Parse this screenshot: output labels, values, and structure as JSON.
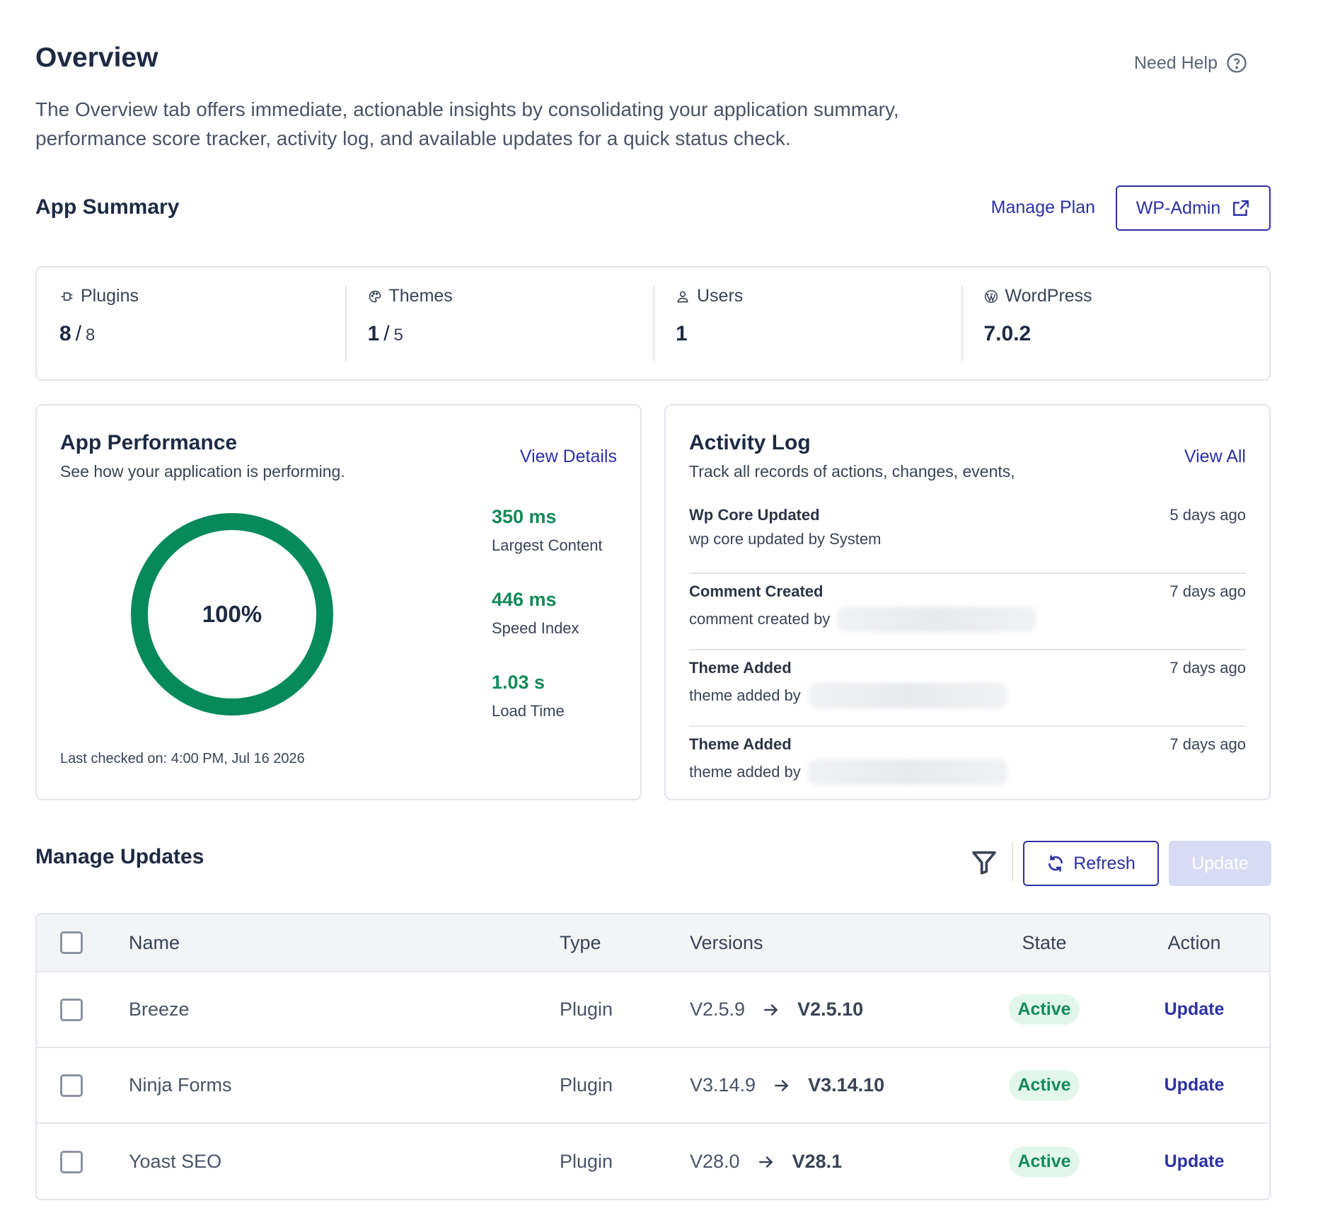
{
  "header": {
    "title": "Overview",
    "help_label": "Need Help",
    "intro_line1": "The Overview tab offers immediate, actionable insights by consolidating your application summary,",
    "intro_line2": "performance score tracker, activity log, and available updates for a quick status check."
  },
  "app_summary": {
    "title": "App Summary",
    "manage_plan": "Manage Plan",
    "wp_admin": "WP-Admin",
    "items": [
      {
        "label": "Plugins",
        "value": "8",
        "sep": "/",
        "total": "8",
        "icon": "plug-icon"
      },
      {
        "label": "Themes",
        "value": "1",
        "sep": "/",
        "total": "5",
        "icon": "palette-icon"
      },
      {
        "label": "Users",
        "value": "1",
        "icon": "user-icon"
      },
      {
        "label": "WordPress",
        "value": "7.0.2",
        "icon": "wordpress-icon"
      }
    ]
  },
  "performance": {
    "title": "App Performance",
    "subtitle": "See how your application is performing.",
    "link": "View Details",
    "score_label": "100%",
    "score_fraction": 1.0,
    "ring_color": "#078a5b",
    "metrics": [
      {
        "value": "350 ms",
        "label": "Largest Content"
      },
      {
        "value": "446 ms",
        "label": "Speed Index"
      },
      {
        "value": "1.03 s",
        "label": "Load Time"
      }
    ],
    "last_checked": "Last checked on: 4:00 PM, Jul 16 2026"
  },
  "activity": {
    "title": "Activity Log",
    "subtitle": "Track all records of actions, changes, events,",
    "link": "View All",
    "items": [
      {
        "title": "Wp Core Updated",
        "desc": "wp core updated by System",
        "time": "5 days ago"
      },
      {
        "title": "Comment Created",
        "desc": "comment created by",
        "time": "7 days ago"
      },
      {
        "title": "Theme Added",
        "desc": "theme added by",
        "time": "7 days ago"
      },
      {
        "title": "Theme Added",
        "desc": "theme added by",
        "time": "7 days ago"
      }
    ]
  },
  "updates": {
    "title": "Manage Updates",
    "refresh": "Refresh",
    "update_all": "Update",
    "columns": {
      "name": "Name",
      "type": "Type",
      "versions": "Versions",
      "state": "State",
      "action": "Action"
    },
    "rows": [
      {
        "name": "Breeze",
        "type": "Plugin",
        "from": "V2.5.9",
        "to": "V2.5.10",
        "state": "Active",
        "action": "Update"
      },
      {
        "name": "Ninja Forms",
        "type": "Plugin",
        "from": "V3.14.9",
        "to": "V3.14.10",
        "state": "Active",
        "action": "Update"
      },
      {
        "name": "Yoast SEO",
        "type": "Plugin",
        "from": "V28.0",
        "to": "V28.1",
        "state": "Active",
        "action": "Update"
      }
    ]
  },
  "colors": {
    "accent": "#2d31a6",
    "success": "#138a5a",
    "success_bg": "#e3f6ec",
    "disabled_btn": "#d8dbf4"
  }
}
